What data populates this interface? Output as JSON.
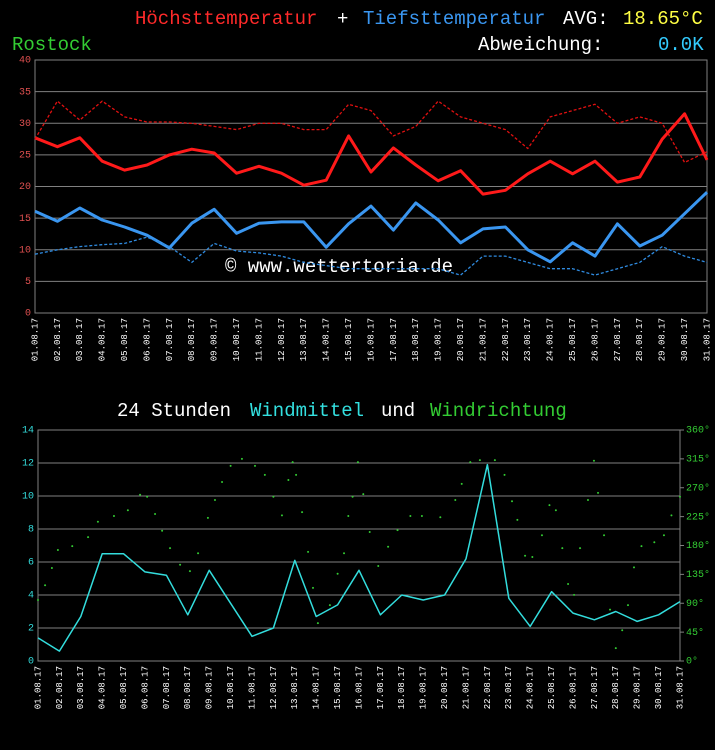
{
  "chart_data": [
    {
      "type": "line",
      "location": "Rostock",
      "conjunction": "+",
      "avg_label": "AVG:",
      "avg_value": "18.65°C",
      "deviation_label": "Abweichung:",
      "deviation_value": "0.0K",
      "watermark": "© www.wettertoria.de",
      "categories": [
        "01.08.17",
        "02.08.17",
        "03.08.17",
        "04.08.17",
        "05.08.17",
        "06.08.17",
        "07.08.17",
        "08.08.17",
        "09.08.17",
        "10.08.17",
        "11.08.17",
        "12.08.17",
        "13.08.17",
        "14.08.17",
        "15.08.17",
        "16.08.17",
        "17.08.17",
        "18.08.17",
        "19.08.17",
        "20.08.17",
        "21.08.17",
        "22.08.17",
        "23.08.17",
        "24.08.17",
        "25.08.17",
        "26.08.17",
        "27.08.17",
        "28.08.17",
        "29.08.17",
        "30.08.17",
        "31.08.17"
      ],
      "ylim": [
        0,
        40
      ],
      "yticks": [
        0,
        5,
        10,
        15,
        20,
        25,
        30,
        35,
        40
      ],
      "grid": true,
      "series": [
        {
          "name": "Höchsttemperatur",
          "color": "#ff1a1a",
          "style": "solid",
          "values": [
            27.7,
            26.3,
            27.7,
            24.0,
            22.6,
            23.4,
            25.0,
            25.9,
            25.3,
            22.1,
            23.2,
            22.1,
            20.2,
            21.0,
            28.0,
            22.3,
            26.1,
            23.4,
            20.9,
            22.5,
            18.8,
            19.4,
            22.0,
            24.0,
            22.0,
            24.0,
            20.7,
            21.5,
            27.5,
            31.5,
            24.2
          ]
        },
        {
          "name": "Tiefsttemperatur",
          "color": "#3a96f0",
          "style": "solid",
          "values": [
            16.1,
            14.5,
            16.6,
            14.7,
            13.6,
            12.3,
            10.3,
            14.2,
            16.4,
            12.6,
            14.2,
            14.4,
            14.4,
            10.4,
            14.1,
            16.9,
            13.1,
            17.4,
            14.7,
            11.1,
            13.3,
            13.6,
            10.0,
            8.1,
            11.1,
            9.0,
            14.1,
            10.6,
            12.3,
            15.7,
            19.1
          ]
        },
        {
          "color": "#e01010",
          "style": "dashed",
          "values": [
            27.5,
            33.5,
            30.5,
            33.5,
            31.0,
            30.2,
            30.2,
            30.0,
            29.5,
            29.0,
            30.0,
            30.0,
            29.0,
            29.0,
            33.0,
            32.0,
            28.0,
            29.5,
            33.5,
            31.0,
            30.0,
            29.0,
            26.0,
            31.0,
            32.0,
            33.0,
            30.0,
            31.0,
            30.0,
            23.8,
            25.5
          ]
        },
        {
          "color": "#2f8be0",
          "style": "dashed",
          "values": [
            9.3,
            10.0,
            10.5,
            10.8,
            11.0,
            12.0,
            10.5,
            8.0,
            11.0,
            9.8,
            9.5,
            9.0,
            8.0,
            7.5,
            7.0,
            7.0,
            7.0,
            7.0,
            7.0,
            6.0,
            9.0,
            9.0,
            8.0,
            7.0,
            7.0,
            6.0,
            7.0,
            8.0,
            10.5,
            9.0,
            8.0
          ]
        }
      ]
    },
    {
      "type": "line",
      "title_prefix": "24 Stunden",
      "conjunction": "und",
      "categories": [
        "01.08.17",
        "02.08.17",
        "03.08.17",
        "04.08.17",
        "05.08.17",
        "06.08.17",
        "07.08.17",
        "08.08.17",
        "09.08.17",
        "10.08.17",
        "11.08.17",
        "12.08.17",
        "13.08.17",
        "14.08.17",
        "15.08.17",
        "16.08.17",
        "17.08.17",
        "18.08.17",
        "19.08.17",
        "20.08.17",
        "21.08.17",
        "22.08.17",
        "23.08.17",
        "24.08.17",
        "25.08.17",
        "26.08.17",
        "27.08.17",
        "28.08.17",
        "29.08.17",
        "30.08.17",
        "31.08.17"
      ],
      "ylim": [
        0,
        14
      ],
      "yticks": [
        0,
        2,
        4,
        6,
        8,
        10,
        12,
        14
      ],
      "y2lim": [
        0,
        360
      ],
      "y2ticks": [
        {
          "value": 0,
          "label": "0°"
        },
        {
          "value": 45,
          "label": "45°"
        },
        {
          "value": 90,
          "label": "90°"
        },
        {
          "value": 135,
          "label": "135°"
        },
        {
          "value": 180,
          "label": "180°"
        },
        {
          "value": 225,
          "label": "225°"
        },
        {
          "value": 270,
          "label": "270°"
        },
        {
          "value": 315,
          "label": "315°"
        },
        {
          "value": 360,
          "label": "360°"
        }
      ],
      "grid": true,
      "series": [
        {
          "name": "Windmittel",
          "color": "#33dddd",
          "type": "line",
          "style": "solid",
          "values": [
            1.4,
            0.6,
            2.7,
            6.5,
            6.5,
            5.4,
            5.2,
            2.8,
            5.5,
            3.5,
            1.5,
            2.0,
            6.1,
            2.7,
            3.4,
            5.5,
            2.8,
            4.0,
            3.7,
            4.0,
            6.2,
            11.9,
            3.8,
            2.1,
            4.2,
            2.9,
            2.5,
            3.0,
            2.4,
            2.8,
            3.6
          ]
        },
        {
          "name": "Windrichtung",
          "color": "#33cc33",
          "type": "scatter",
          "axis": "y2",
          "x": [
            1.0,
            1.33,
            1.65,
            1.93,
            2.6,
            3.34,
            3.8,
            4.55,
            5.2,
            5.77,
            6.1,
            6.47,
            6.8,
            7.17,
            7.64,
            8.1,
            8.48,
            8.94,
            9.27,
            9.6,
            10.0,
            10.53,
            11.14,
            11.6,
            12.0,
            12.4,
            12.7,
            12.9,
            13.06,
            13.34,
            13.62,
            13.85,
            14.08,
            14.64,
            15.0,
            15.3,
            15.5,
            15.7,
            15.95,
            16.2,
            16.5,
            16.9,
            17.36,
            17.8,
            18.4,
            18.94,
            19.8,
            20.5,
            20.8,
            21.2,
            21.65,
            22.35,
            22.8,
            23.15,
            23.4,
            23.76,
            24.1,
            24.55,
            24.9,
            25.2,
            25.5,
            25.77,
            26.05,
            26.33,
            26.7,
            26.98,
            27.17,
            27.45,
            27.73,
            28.0,
            28.3,
            28.57,
            28.85,
            29.2,
            29.8,
            30.25,
            30.6,
            31.0
          ],
          "values": [
            95,
            118,
            145,
            173,
            179,
            193,
            217,
            226,
            235,
            259,
            256,
            229,
            203,
            176,
            150,
            140,
            168,
            223,
            251,
            279,
            304,
            315,
            304,
            290,
            256,
            227,
            282,
            310,
            290,
            232,
            170,
            114,
            59,
            87,
            136,
            168,
            226,
            256,
            310,
            260,
            201,
            148,
            178,
            204,
            226,
            226,
            224,
            251,
            276,
            310,
            313,
            313,
            290,
            249,
            220,
            164,
            162,
            196,
            243,
            235,
            176,
            120,
            103,
            176,
            251,
            312,
            262,
            196,
            80,
            20,
            48,
            87,
            146,
            179,
            185,
            196,
            227,
            256
          ]
        }
      ]
    }
  ]
}
